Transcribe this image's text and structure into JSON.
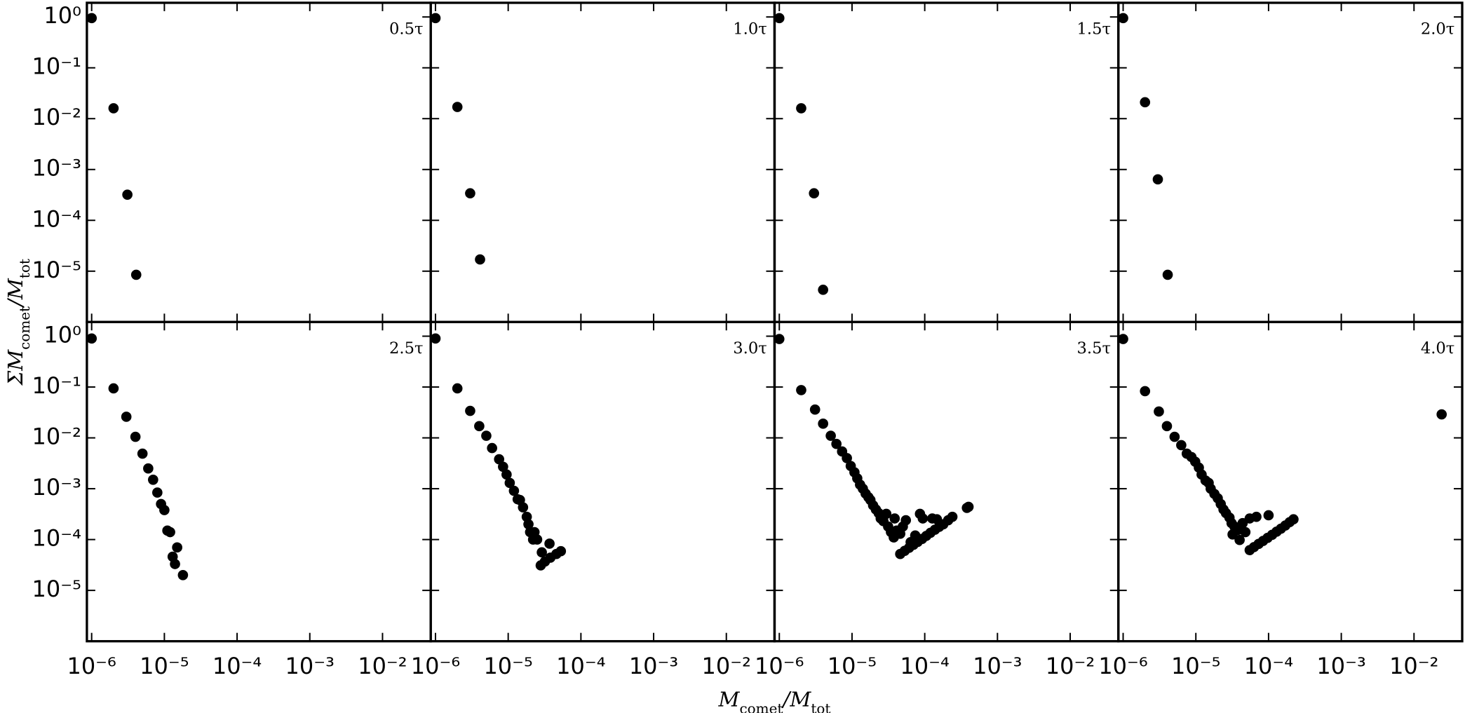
{
  "axes": {
    "xscale": "log",
    "yscale": "log",
    "xlim": [
      8.6e-07,
      0.046
    ],
    "ylim": [
      1e-06,
      1.9
    ],
    "xticks": [
      {
        "value": 1e-06,
        "label": "10⁻⁶"
      },
      {
        "value": 1e-05,
        "label": "10⁻⁵"
      },
      {
        "value": 0.0001,
        "label": "10⁻⁴"
      },
      {
        "value": 0.001,
        "label": "10⁻³"
      },
      {
        "value": 0.01,
        "label": "10⁻²"
      }
    ],
    "yticks": [
      {
        "value": 1,
        "label": "10⁰"
      },
      {
        "value": 0.1,
        "label": "10⁻¹"
      },
      {
        "value": 0.01,
        "label": "10⁻²"
      },
      {
        "value": 0.001,
        "label": "10⁻³"
      },
      {
        "value": 0.0001,
        "label": "10⁻⁴"
      },
      {
        "value": 1e-05,
        "label": "10⁻⁵"
      }
    ],
    "xlabel": [
      {
        "text": "M"
      },
      {
        "text": "comet",
        "sub": true
      },
      {
        "text": "/M"
      },
      {
        "text": "tot",
        "sub": true
      }
    ],
    "ylabel": [
      {
        "text": "ΣM"
      },
      {
        "text": "comet",
        "sub": true
      },
      {
        "text": "/M"
      },
      {
        "text": "tot",
        "sub": true
      }
    ]
  },
  "chart_data": [
    {
      "type": "scatter",
      "label": "0.5τ",
      "color": "#000000",
      "x": [
        1e-06,
        2e-06,
        3.1e-06,
        4.1e-06
      ],
      "values": [
        0.95,
        0.016,
        0.00032,
        8.5e-06
      ]
    },
    {
      "type": "scatter",
      "label": "1.0τ",
      "color": "#000000",
      "x": [
        1e-06,
        2e-06,
        3e-06,
        4.1e-06
      ],
      "values": [
        0.95,
        0.017,
        0.00034,
        1.7e-05
      ]
    },
    {
      "type": "scatter",
      "label": "1.5τ",
      "color": "#000000",
      "x": [
        1e-06,
        2e-06,
        3e-06,
        4e-06
      ],
      "values": [
        0.95,
        0.016,
        0.00034,
        4.3e-06
      ]
    },
    {
      "type": "scatter",
      "label": "2.0τ",
      "color": "#000000",
      "x": [
        1e-06,
        2e-06,
        3e-06,
        4.1e-06
      ],
      "values": [
        0.95,
        0.021,
        0.00064,
        8.5e-06
      ]
    },
    {
      "type": "scatter",
      "label": "2.5τ",
      "color": "#000000",
      "x": [
        1e-06,
        2e-06,
        3e-06,
        4e-06,
        5e-06,
        6e-06,
        7e-06,
        8e-06,
        9e-06,
        1e-05,
        1.1e-05,
        1.2e-05,
        1.5e-05,
        1.3e-05,
        1.4e-05,
        1.8e-05
      ],
      "values": [
        0.9,
        0.094,
        0.026,
        0.0105,
        0.0049,
        0.0025,
        0.0015,
        0.00084,
        0.0005,
        0.00038,
        0.00015,
        0.00014,
        7e-05,
        4.6e-05,
        3.3e-05,
        2e-05
      ]
    },
    {
      "type": "scatter",
      "label": "3.0τ",
      "color": "#000000",
      "x": [
        1e-06,
        2e-06,
        3e-06,
        4e-06,
        5e-06,
        6e-06,
        7.5e-06,
        8.5e-06,
        9.5e-06,
        1.05e-05,
        1.2e-05,
        1.35e-05,
        1.45e-05,
        1.6e-05,
        1.8e-05,
        1.9e-05,
        2e-05,
        2.3e-05,
        2.2e-05,
        2.5e-05,
        2.9e-05,
        3.7e-05,
        2.8e-05,
        3.2e-05,
        3.8e-05,
        4.6e-05,
        5.3e-05
      ],
      "values": [
        0.9,
        0.094,
        0.034,
        0.017,
        0.011,
        0.0063,
        0.0038,
        0.0027,
        0.0019,
        0.0013,
        0.00091,
        0.00062,
        0.0006,
        0.00043,
        0.00028,
        0.0002,
        0.00014,
        0.00014,
        0.0001,
        0.0001,
        5.6e-05,
        8.3e-05,
        3.1e-05,
        3.7e-05,
        4.4e-05,
        5.2e-05,
        5.9e-05
      ]
    },
    {
      "type": "scatter",
      "label": "3.5τ",
      "color": "#000000",
      "x": [
        1e-06,
        2e-06,
        3.1e-06,
        4e-06,
        5.1e-06,
        6.1e-06,
        7.3e-06,
        8.5e-06,
        9.6e-06,
        1.08e-05,
        1.18e-05,
        1.29e-05,
        1.41e-05,
        1.54e-05,
        1.68e-05,
        1.79e-05,
        1.95e-05,
        2.13e-05,
        2.33e-05,
        2.48e-05,
        2.7e-05,
        2.96e-05,
        3.14e-05,
        3.43e-05,
        3.86e-05,
        3.75e-05,
        4.1e-05,
        4.6e-05,
        5e-05,
        5.5e-05,
        8.6e-05,
        0.000127,
        0.000147,
        6.4e-05,
        7.4e-05,
        9.4e-05,
        4.6e-05,
        5.3e-05,
        6.1e-05,
        7e-05,
        8e-05,
        9.2e-05,
        0.000105,
        0.00012,
        0.000138,
        0.000158,
        0.00018,
        0.00021,
        0.00024,
        0.00038,
        0.0004
      ],
      "values": [
        0.88,
        0.087,
        0.036,
        0.019,
        0.011,
        0.0076,
        0.0054,
        0.004,
        0.0028,
        0.0021,
        0.0016,
        0.0012,
        0.001,
        0.0008,
        0.00068,
        0.0006,
        0.00047,
        0.00039,
        0.00033,
        0.00026,
        0.00023,
        0.00032,
        0.00018,
        0.00014,
        0.00026,
        0.00011,
        0.00015,
        0.00013,
        0.00018,
        0.00024,
        0.00032,
        0.00026,
        0.00025,
        8.9e-05,
        0.00012,
        0.00026,
        5.2e-05,
        6e-05,
        6.9e-05,
        7.9e-05,
        9e-05,
        0.000103,
        0.000118,
        0.000136,
        0.000156,
        0.000178,
        0.0002,
        0.00024,
        0.00028,
        0.00042,
        0.00044
      ]
    },
    {
      "type": "scatter",
      "label": "4.0τ",
      "color": "#000000",
      "x": [
        1e-06,
        2e-06,
        3.1e-06,
        4e-06,
        5.1e-06,
        6.3e-06,
        7.5e-06,
        8.7e-06,
        9.8e-06,
        1.1e-05,
        1.2e-05,
        1.36e-05,
        1.5e-05,
        1.6e-05,
        1.8e-05,
        2e-05,
        2.2e-05,
        2.4e-05,
        2.6e-05,
        2.9e-05,
        3.1e-05,
        3.4e-05,
        3.2e-05,
        3.8e-05,
        4.4e-05,
        4.8e-05,
        5.5e-05,
        6.8e-05,
        0.0001,
        4e-05,
        5.5e-05,
        6.3e-05,
        7.3e-05,
        8.4e-05,
        9.7e-05,
        0.000112,
        0.000129,
        0.000148,
        0.00017,
        0.000195,
        0.00022,
        0.024
      ],
      "values": [
        0.88,
        0.083,
        0.033,
        0.017,
        0.0105,
        0.0072,
        0.0049,
        0.0042,
        0.0034,
        0.0026,
        0.0019,
        0.00145,
        0.0013,
        0.001,
        0.00079,
        0.00065,
        0.0005,
        0.00039,
        0.00033,
        0.00027,
        0.00021,
        0.00018,
        0.000126,
        0.000155,
        0.00021,
        0.00014,
        0.00026,
        0.00028,
        0.0003,
        9.8e-05,
        6.2e-05,
        7.1e-05,
        8.2e-05,
        9.4e-05,
        0.000108,
        0.000124,
        0.000143,
        0.000164,
        0.000189,
        0.00022,
        0.00025,
        0.029
      ]
    }
  ]
}
